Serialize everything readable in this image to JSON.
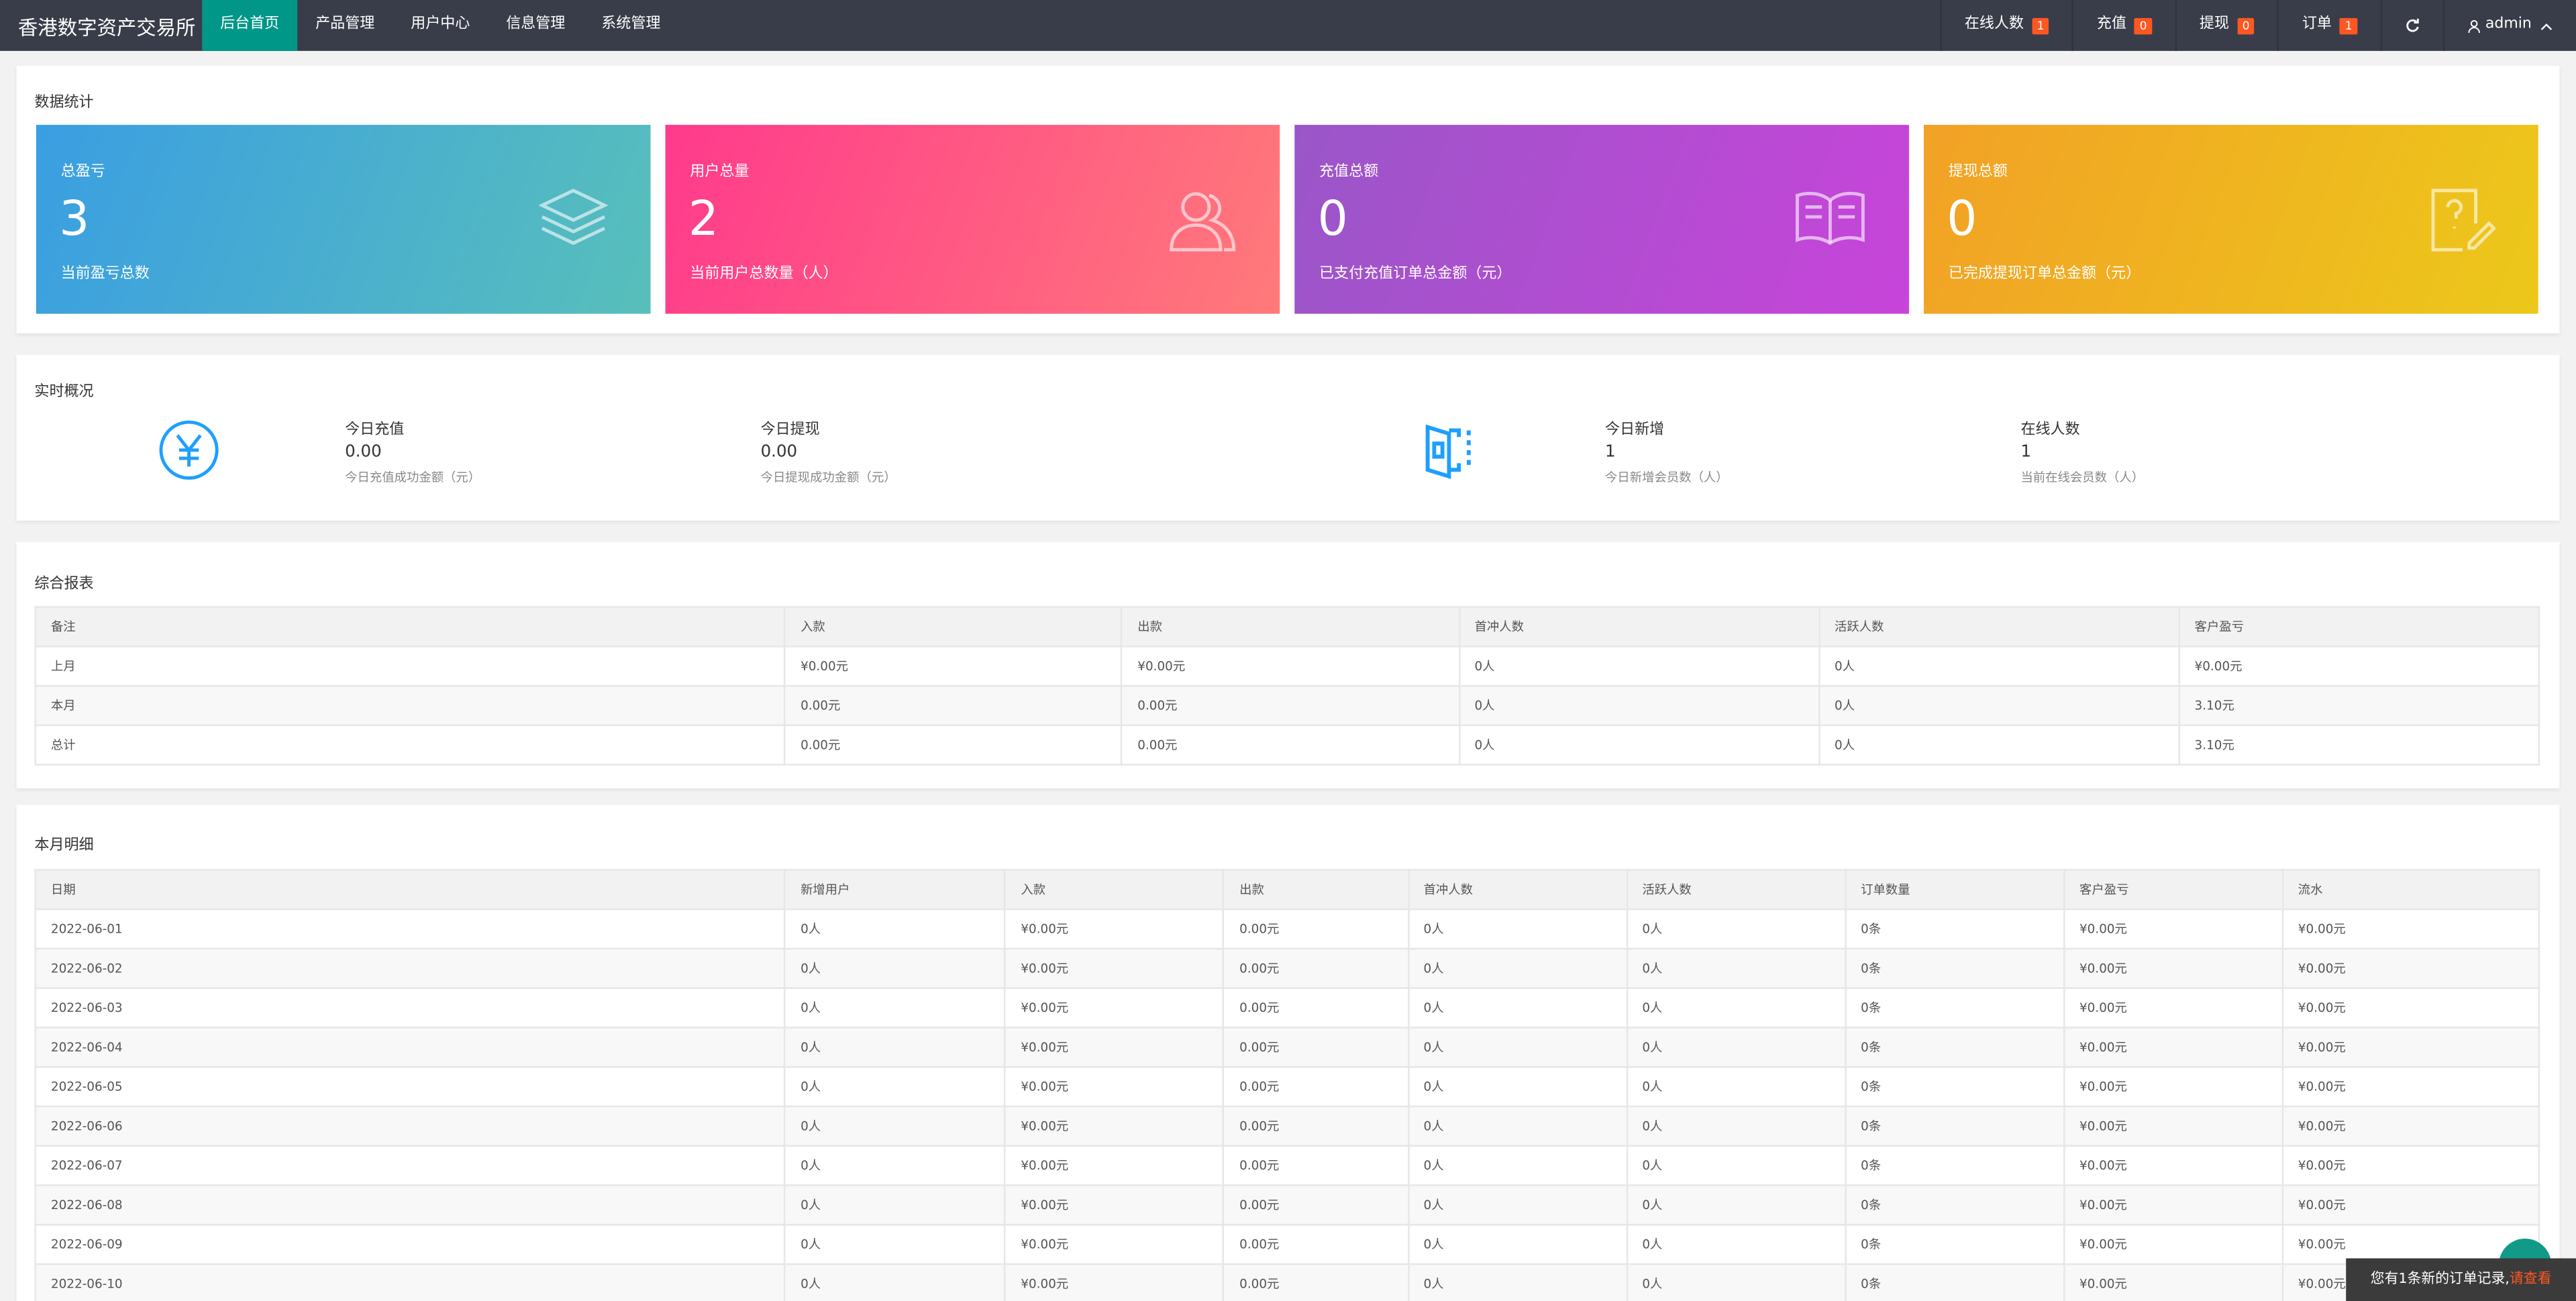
{
  "nav": {
    "brand": "香港数字资产交易所",
    "menu": [
      "后台首页",
      "产品管理",
      "用户中心",
      "信息管理",
      "系统管理"
    ],
    "right": [
      {
        "label": "在线人数",
        "badge": "1"
      },
      {
        "label": "充值",
        "badge": "0"
      },
      {
        "label": "提现",
        "badge": "0"
      },
      {
        "label": "订单",
        "badge": "1"
      }
    ],
    "user": "admin"
  },
  "stats": {
    "title": "数据统计",
    "cards": [
      {
        "label": "总盈亏",
        "value": "3",
        "desc": "当前盈亏总数"
      },
      {
        "label": "用户总量",
        "value": "2",
        "desc": "当前用户总数量（人）"
      },
      {
        "label": "充值总额",
        "value": "0",
        "desc": "已支付充值订单总金额（元）"
      },
      {
        "label": "提现总额",
        "value": "0",
        "desc": "已完成提现订单总金额（元）"
      }
    ]
  },
  "realtime": {
    "title": "实时概况",
    "items": [
      {
        "label": "今日充值",
        "value": "0.00",
        "desc": "今日充值成功金额（元）"
      },
      {
        "label": "今日提现",
        "value": "0.00",
        "desc": "今日提现成功金额（元）"
      },
      {
        "label": "今日新增",
        "value": "1",
        "desc": "今日新增会员数（人）"
      },
      {
        "label": "在线人数",
        "value": "1",
        "desc": "当前在线会员数（人）"
      }
    ]
  },
  "report": {
    "title": "综合报表",
    "columns": [
      "备注",
      "入款",
      "出款",
      "首冲人数",
      "活跃人数",
      "客户盈亏"
    ],
    "rows": [
      [
        "上月",
        "¥0.00元",
        "¥0.00元",
        "0人",
        "0人",
        "¥0.00元"
      ],
      [
        "本月",
        "0.00元",
        "0.00元",
        "0人",
        "0人",
        "3.10元"
      ],
      [
        "总计",
        "0.00元",
        "0.00元",
        "0人",
        "0人",
        "3.10元"
      ]
    ]
  },
  "monthly": {
    "title": "本月明细",
    "columns": [
      "日期",
      "新增用户",
      "入款",
      "出款",
      "首冲人数",
      "活跃人数",
      "订单数量",
      "客户盈亏",
      "流水"
    ],
    "rows": [
      [
        "2022-06-01",
        "0人",
        "¥0.00元",
        "0.00元",
        "0人",
        "0人",
        "0条",
        "¥0.00元",
        "¥0.00元"
      ],
      [
        "2022-06-02",
        "0人",
        "¥0.00元",
        "0.00元",
        "0人",
        "0人",
        "0条",
        "¥0.00元",
        "¥0.00元"
      ],
      [
        "2022-06-03",
        "0人",
        "¥0.00元",
        "0.00元",
        "0人",
        "0人",
        "0条",
        "¥0.00元",
        "¥0.00元"
      ],
      [
        "2022-06-04",
        "0人",
        "¥0.00元",
        "0.00元",
        "0人",
        "0人",
        "0条",
        "¥0.00元",
        "¥0.00元"
      ],
      [
        "2022-06-05",
        "0人",
        "¥0.00元",
        "0.00元",
        "0人",
        "0人",
        "0条",
        "¥0.00元",
        "¥0.00元"
      ],
      [
        "2022-06-06",
        "0人",
        "¥0.00元",
        "0.00元",
        "0人",
        "0人",
        "0条",
        "¥0.00元",
        "¥0.00元"
      ],
      [
        "2022-06-07",
        "0人",
        "¥0.00元",
        "0.00元",
        "0人",
        "0人",
        "0条",
        "¥0.00元",
        "¥0.00元"
      ],
      [
        "2022-06-08",
        "0人",
        "¥0.00元",
        "0.00元",
        "0人",
        "0人",
        "0条",
        "¥0.00元",
        "¥0.00元"
      ],
      [
        "2022-06-09",
        "0人",
        "¥0.00元",
        "0.00元",
        "0人",
        "0人",
        "0条",
        "¥0.00元",
        "¥0.00元"
      ],
      [
        "2022-06-10",
        "0人",
        "¥0.00元",
        "0.00元",
        "0人",
        "0人",
        "0条",
        "¥0.00元",
        "¥0.00元"
      ]
    ]
  },
  "notice": {
    "text": "您有1条新的订单记录,",
    "link": "请查看"
  }
}
